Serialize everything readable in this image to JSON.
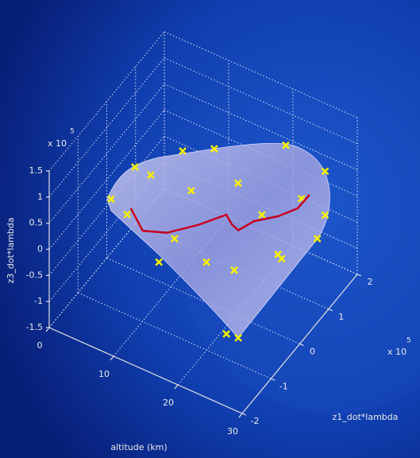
{
  "chart_data": {
    "type": "scatter3d",
    "xlabel": "altitude (km)",
    "ylabel": "z1_dot*lambda",
    "zlabel": "z3_dot*lambda",
    "y_multiplier": "x 10",
    "y_exponent": "5",
    "z_multiplier": "x 10",
    "z_exponent": "5",
    "xlim": [
      0,
      30
    ],
    "xticks": [
      0,
      10,
      20,
      30
    ],
    "ylim": [
      -2,
      2
    ],
    "yticks": [
      -2,
      -1,
      0,
      1,
      2
    ],
    "zlim": [
      -1.5,
      1.5
    ],
    "zticks": [
      -1.5,
      -1,
      -0.5,
      0,
      0.5,
      1,
      1.5
    ],
    "grid": true,
    "series": [
      {
        "type": "scatter",
        "color": "#f5f000",
        "x": [
          5,
          5,
          5,
          10,
          20,
          25,
          25,
          25,
          25,
          25,
          15,
          5,
          10,
          15,
          20,
          20,
          15,
          10,
          20,
          25,
          5,
          25
        ],
        "y": [
          -0.97,
          -0.14,
          1.52,
          1.5,
          1.75,
          2.0,
          2.0,
          1.73,
          -1.02,
          -1.43,
          -1.54,
          -0.41,
          0.7,
          1.21,
          1.48,
          -0.04,
          0.11,
          0.12,
          0.92,
          1.18,
          0.41,
          0.49
        ],
        "z": [
          0.55,
          0.61,
          -0.19,
          0.14,
          0.59,
          0.2,
          -0.64,
          -0.91,
          -0.98,
          -0.63,
          0.27,
          -0.12,
          -0.13,
          -0.05,
          -1.32,
          -0.61,
          -0.83,
          -0.66,
          -0.19,
          0.22,
          0.09,
          -0.47
        ]
      },
      {
        "type": "line",
        "color": "#c8001e",
        "x": [
          2,
          4,
          7,
          10,
          13,
          15,
          17,
          20,
          23,
          26,
          28
        ],
        "y": [
          0.39,
          0.36,
          0.52,
          0.95,
          1.25,
          0.99,
          0.77,
          0.65,
          0.81,
          0.82,
          0.79
        ],
        "z": [
          -0.7,
          -1.0,
          -0.98,
          -0.95,
          -0.79,
          -0.69,
          -0.55,
          -0.13,
          0.02,
          0.33,
          0.72
        ]
      }
    ]
  }
}
